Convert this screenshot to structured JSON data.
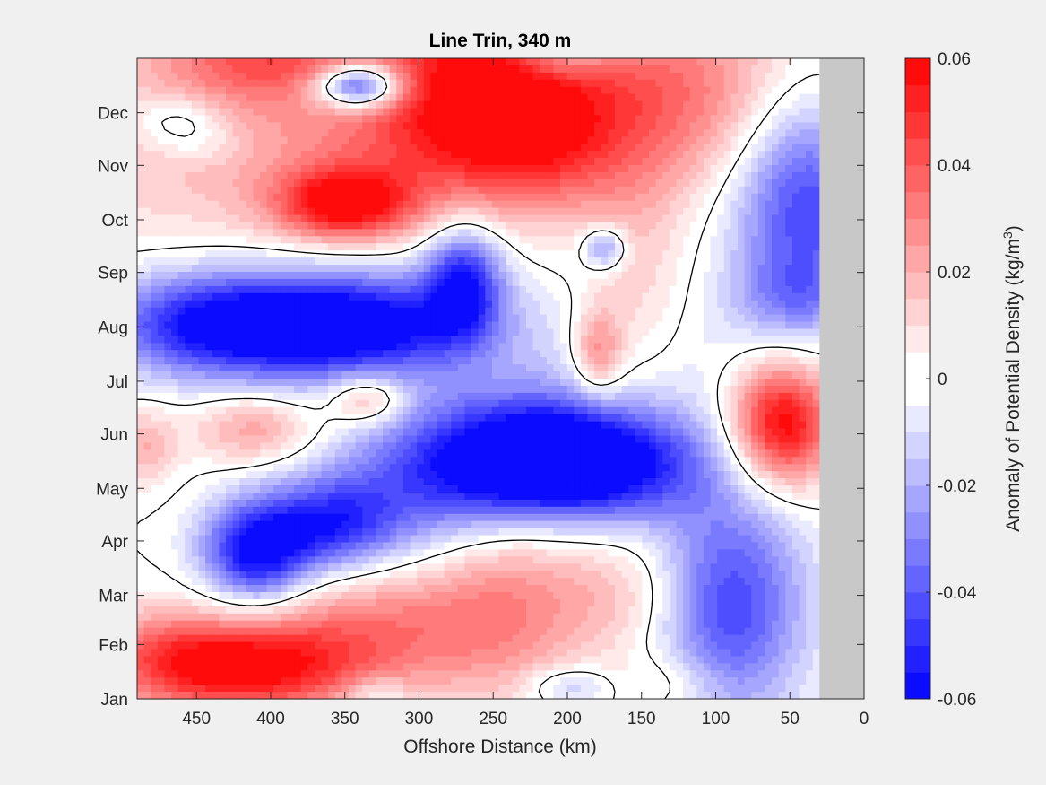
{
  "chart_data": {
    "type": "heatmap",
    "title": "Line Trin, 340 m",
    "xlabel": "Offshore Distance (km)",
    "xlim": [
      490,
      0
    ],
    "x_ticks": [
      450,
      400,
      350,
      300,
      250,
      200,
      150,
      100,
      50,
      0
    ],
    "y_ticks": [
      "Jan",
      "Feb",
      "Mar",
      "Apr",
      "May",
      "Jun",
      "Jul",
      "Aug",
      "Sep",
      "Oct",
      "Nov",
      "Dec"
    ],
    "y_tick_days": [
      1,
      32,
      60,
      91,
      121,
      152,
      182,
      213,
      244,
      274,
      305,
      335
    ],
    "ylim_days": [
      1,
      366
    ],
    "colorbar": {
      "label_prefix": "Anomaly of Potential Density (kg/m",
      "label_sup": "3",
      "label_suffix": ")",
      "range": [
        -0.06,
        0.06
      ],
      "levels": 24,
      "tick_values": [
        0.06,
        0.04,
        0.02,
        0,
        -0.02,
        -0.04,
        -0.06
      ],
      "tick_labels": [
        "0.06",
        "0.04",
        "0.02",
        "0",
        "-0.02",
        "-0.04",
        "-0.06"
      ],
      "negative_color": "#0000ff",
      "positive_color": "#ff0000",
      "zero_color": "#ffffff"
    },
    "masked_x_range": [
      0,
      30
    ],
    "mask_color": "#c8c8c8",
    "zero_contour": true,
    "features": [
      {
        "x": 350,
        "day": 283,
        "value": 0.055,
        "sx": 32,
        "sy": 14
      },
      {
        "x": 420,
        "day": 305,
        "value": 0.015,
        "sx": 110,
        "sy": 35
      },
      {
        "x": 180,
        "day": 345,
        "value": 0.04,
        "sx": 130,
        "sy": 40
      },
      {
        "x": 270,
        "day": 345,
        "value": 0.03,
        "sx": 50,
        "sy": 40
      },
      {
        "x": 400,
        "day": 366,
        "value": 0.035,
        "sx": 60,
        "sy": 18
      },
      {
        "x": 220,
        "day": 315,
        "value": 0.02,
        "sx": 40,
        "sy": 25
      },
      {
        "x": 460,
        "day": 330,
        "value": -0.018,
        "sx": 22,
        "sy": 10
      },
      {
        "x": 445,
        "day": 315,
        "value": -0.008,
        "sx": 20,
        "sy": 8
      },
      {
        "x": 340,
        "day": 350,
        "value": -0.05,
        "sx": 18,
        "sy": 8
      },
      {
        "x": 340,
        "day": 352,
        "value": -0.03,
        "sx": 30,
        "sy": 12
      },
      {
        "x": 200,
        "day": 366,
        "value": -0.02,
        "sx": 25,
        "sy": 8
      },
      {
        "x": 175,
        "day": 258,
        "value": -0.035,
        "sx": 10,
        "sy": 8
      },
      {
        "x": 40,
        "day": 290,
        "value": -0.05,
        "sx": 35,
        "sy": 50
      },
      {
        "x": 50,
        "day": 230,
        "value": -0.015,
        "sx": 25,
        "sy": 15
      },
      {
        "x": 385,
        "day": 213,
        "value": -0.05,
        "sx": 60,
        "sy": 22
      },
      {
        "x": 450,
        "day": 215,
        "value": -0.035,
        "sx": 50,
        "sy": 20
      },
      {
        "x": 320,
        "day": 215,
        "value": -0.035,
        "sx": 50,
        "sy": 20
      },
      {
        "x": 270,
        "day": 240,
        "value": -0.05,
        "sx": 18,
        "sy": 22
      },
      {
        "x": 190,
        "day": 135,
        "value": -0.065,
        "sx": 55,
        "sy": 22
      },
      {
        "x": 250,
        "day": 140,
        "value": -0.04,
        "sx": 60,
        "sy": 25
      },
      {
        "x": 410,
        "day": 85,
        "value": -0.06,
        "sx": 25,
        "sy": 20
      },
      {
        "x": 360,
        "day": 100,
        "value": -0.04,
        "sx": 30,
        "sy": 18
      },
      {
        "x": 310,
        "day": 110,
        "value": -0.02,
        "sx": 50,
        "sy": 25
      },
      {
        "x": 90,
        "day": 55,
        "value": -0.045,
        "sx": 35,
        "sy": 45
      },
      {
        "x": 180,
        "day": 185,
        "value": -0.01,
        "sx": 80,
        "sy": 40
      },
      {
        "x": 55,
        "day": 158,
        "value": 0.065,
        "sx": 25,
        "sy": 25
      },
      {
        "x": 180,
        "day": 198,
        "value": 0.03,
        "sx": 12,
        "sy": 18
      },
      {
        "x": 155,
        "day": 230,
        "value": 0.015,
        "sx": 25,
        "sy": 50
      },
      {
        "x": 410,
        "day": 18,
        "value": 0.05,
        "sx": 50,
        "sy": 18
      },
      {
        "x": 330,
        "day": 40,
        "value": 0.03,
        "sx": 55,
        "sy": 25
      },
      {
        "x": 470,
        "day": 25,
        "value": 0.03,
        "sx": 40,
        "sy": 20
      },
      {
        "x": 240,
        "day": 55,
        "value": 0.025,
        "sx": 40,
        "sy": 40
      },
      {
        "x": 160,
        "day": 60,
        "value": 0.015,
        "sx": 35,
        "sy": 25
      },
      {
        "x": 200,
        "day": 8,
        "value": -0.02,
        "sx": 20,
        "sy": 8
      },
      {
        "x": 130,
        "day": 10,
        "value": 0.012,
        "sx": 25,
        "sy": 12
      },
      {
        "x": 330,
        "day": 5,
        "value": -0.015,
        "sx": 15,
        "sy": 6
      },
      {
        "x": 410,
        "day": 155,
        "value": 0.025,
        "sx": 30,
        "sy": 14
      },
      {
        "x": 335,
        "day": 172,
        "value": 0.03,
        "sx": 18,
        "sy": 10
      },
      {
        "x": 485,
        "day": 145,
        "value": 0.02,
        "sx": 15,
        "sy": 15
      }
    ]
  }
}
